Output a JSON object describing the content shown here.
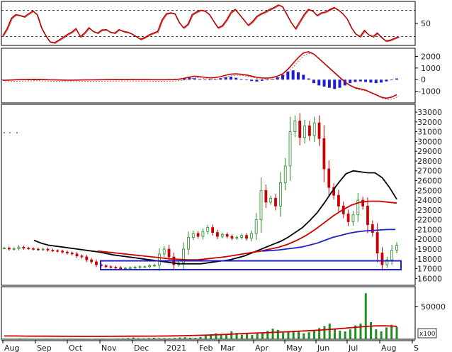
{
  "chart_data": [
    {
      "type": "line",
      "panel": "oscillator",
      "y_ticks": [
        "50"
      ],
      "ylim": [
        0,
        100
      ],
      "guide_levels": [
        80,
        20
      ],
      "series": [
        {
          "color": "#cc0000",
          "values": [
            22,
            38,
            62,
            70,
            68,
            65,
            72,
            78,
            70,
            40,
            22,
            8,
            6,
            12,
            18,
            25,
            30,
            38,
            20,
            28,
            40,
            32,
            28,
            35,
            36,
            30,
            28,
            36,
            32,
            30,
            26,
            20,
            14,
            18,
            24,
            28,
            32,
            58,
            72,
            74,
            72,
            52,
            40,
            48,
            70,
            76,
            80,
            78,
            70,
            55,
            40,
            45,
            58,
            75,
            82,
            70,
            58,
            46,
            54,
            66,
            72,
            76,
            82,
            86,
            92,
            88,
            70,
            52,
            38,
            54,
            70,
            82,
            78,
            68,
            74,
            76,
            82,
            86,
            80,
            72,
            60,
            40,
            26,
            20,
            34,
            24,
            20,
            28,
            18,
            10,
            12,
            16,
            20
          ]
        }
      ]
    },
    {
      "type": "line",
      "panel": "macd",
      "y_ticks": [
        "2000",
        "1000",
        "0",
        "-1000"
      ],
      "ylim": [
        -2000,
        2700
      ],
      "series": [
        {
          "color": "#cc0000",
          "values": [
            -60,
            -40,
            -20,
            0,
            10,
            20,
            25,
            20,
            10,
            -10,
            -20,
            -30,
            -40,
            -45,
            -40,
            -30,
            -20,
            -15,
            -10,
            -5,
            0,
            5,
            10,
            12,
            10,
            8,
            5,
            2,
            0,
            -2,
            -5,
            -3,
            0,
            10,
            40,
            120,
            220,
            300,
            260,
            200,
            150,
            180,
            260,
            380,
            480,
            500,
            460,
            400,
            300,
            200,
            150,
            130,
            180,
            300,
            500,
            900,
            1400,
            1900,
            2300,
            2400,
            2200,
            1800,
            1400,
            1000,
            600,
            200,
            -200,
            -500,
            -700,
            -800,
            -900,
            -1100,
            -1300,
            -1500,
            -1600,
            -1500,
            -1300
          ]
        },
        {
          "color": "#1f1fcc",
          "type": "bar",
          "values": [
            -20,
            -15,
            -10,
            0,
            5,
            10,
            8,
            6,
            2,
            -5,
            -10,
            -15,
            -20,
            -22,
            -18,
            -12,
            -8,
            -5,
            -3,
            -1,
            0,
            2,
            4,
            5,
            3,
            2,
            1,
            0,
            -1,
            -2,
            -3,
            -1,
            2,
            15,
            60,
            140,
            180,
            120,
            60,
            20,
            -10,
            40,
            120,
            200,
            260,
            160,
            60,
            -40,
            -120,
            -160,
            -100,
            -40,
            60,
            200,
            420,
            700,
            800,
            640,
            420,
            100,
            -300,
            -500,
            -600,
            -700,
            -800,
            -700,
            -500,
            -300,
            -200,
            -150,
            -200,
            -250,
            -300,
            -250,
            -150,
            -50,
            100
          ]
        }
      ]
    },
    {
      "type": "line",
      "panel": "price",
      "y_ticks": [
        "33000",
        "32000",
        "31000",
        "30000",
        "29000",
        "28000",
        "27000",
        "26000",
        "25000",
        "24000",
        "23000",
        "22000",
        "21000",
        "20000",
        "19000",
        "18000",
        "17000",
        "16000"
      ],
      "ylim": [
        15300,
        33800
      ],
      "series": [
        {
          "color": "#228b22",
          "type": "bar",
          "values": [
            19100,
            19000,
            19050,
            19200,
            19100,
            19050,
            19000,
            18950,
            19000,
            18900,
            18850,
            18800,
            18700,
            18600,
            18500,
            18300,
            18200,
            17900,
            17700,
            17400,
            17300,
            17200,
            17150,
            17100,
            17000,
            17050,
            17100,
            17150,
            17200,
            17200,
            17300,
            17350,
            18500,
            19000,
            18200,
            17400,
            17600,
            19000,
            20200,
            20600,
            20300,
            20800,
            21200,
            20700,
            20300,
            20500,
            20300,
            20100,
            20200,
            20400,
            20100,
            20600,
            22000,
            25000,
            23800,
            24200,
            23400,
            25800,
            27500,
            31000,
            32100,
            30400,
            31600,
            30600,
            31900,
            30300,
            27200,
            25300,
            24500,
            23400,
            22600,
            21800,
            22500,
            24000,
            23400,
            21500,
            20700,
            18600,
            17400,
            17900,
            18900,
            19400
          ]
        },
        {
          "color": "#000000",
          "values": [
            19900,
            19600,
            19400,
            19300,
            19200,
            19100,
            19000,
            18900,
            18800,
            18700,
            18550,
            18400,
            18300,
            18200,
            18100,
            18000,
            17900,
            17800,
            17700,
            17600,
            17500,
            17500,
            17500,
            17500,
            17600,
            17700,
            17800,
            17900,
            18100,
            18300,
            18600,
            18900,
            19200,
            19500,
            19800,
            20200,
            20700,
            21200,
            21900,
            22700,
            23700,
            24800,
            25800,
            26700,
            27000,
            26900,
            26800,
            26800,
            26300,
            25300,
            24100
          ]
        },
        {
          "color": "#cc0000",
          "values": [
            18800,
            18700,
            18600,
            18500,
            18400,
            18300,
            18200,
            18100,
            18000,
            17950,
            17900,
            17900,
            18000,
            18100,
            18200,
            18350,
            18500,
            18650,
            18800,
            19000,
            19200,
            19500,
            19900,
            20400,
            21000,
            21700,
            22400,
            23000,
            23500,
            23800,
            23900,
            23900,
            23800,
            23700
          ]
        },
        {
          "color": "#1f1fcc",
          "values": [
            18800,
            18850,
            18900,
            19000,
            19100,
            19200,
            19400,
            19600,
            19900,
            20200,
            20400,
            20600,
            20750,
            20850,
            20900,
            20950,
            21000,
            21000
          ]
        }
      ],
      "support_box": [
        16900,
        17800
      ]
    },
    {
      "type": "bar",
      "panel": "volume",
      "unit_label": "x100",
      "y_ticks": [
        "50000"
      ],
      "ylim": [
        0,
        80000
      ],
      "series": [
        {
          "color": "#228b22",
          "type": "bar",
          "values": [
            1000,
            900,
            800,
            1200,
            1000,
            900,
            800,
            700,
            900,
            800,
            700,
            600,
            800,
            1000,
            900,
            800,
            700,
            600,
            800,
            900,
            700,
            800,
            1100,
            1300,
            1800,
            2600,
            1500,
            1400,
            1800,
            2200,
            1700,
            1600,
            1500,
            1800,
            2600,
            3000,
            2400,
            2000,
            3400,
            5200,
            7600,
            9000,
            6400,
            8200,
            12000,
            9600,
            7000,
            8800,
            6500,
            8400,
            10000,
            12800,
            16000,
            14200,
            9800,
            11200,
            13000,
            12400,
            9000,
            10600,
            14000,
            17000,
            20000,
            24000,
            16000,
            13000,
            12000,
            15000,
            21000,
            24000,
            70000,
            26000,
            15000,
            12000,
            18000,
            22000,
            19000
          ]
        },
        {
          "color": "#cc0000",
          "values": [
            5000,
            5000,
            4800,
            4700,
            4600,
            4500,
            4400,
            4300,
            4300,
            4300,
            4400,
            4500,
            4600,
            4700,
            4800,
            4900,
            5100,
            5400,
            5800,
            6200,
            6800,
            7400,
            8200,
            9000,
            9600,
            10200,
            10800,
            11600,
            12400,
            13200,
            14200,
            15400,
            16600,
            18000,
            19400,
            20400,
            20400,
            19600
          ]
        }
      ]
    }
  ],
  "x_axis": {
    "months": [
      "Aug",
      "Sep",
      "Oct",
      "Nov",
      "Dec",
      "2021",
      "Feb",
      "Mar",
      "Apr",
      "May",
      "Jun",
      "Jul",
      "Aug",
      "S"
    ]
  }
}
